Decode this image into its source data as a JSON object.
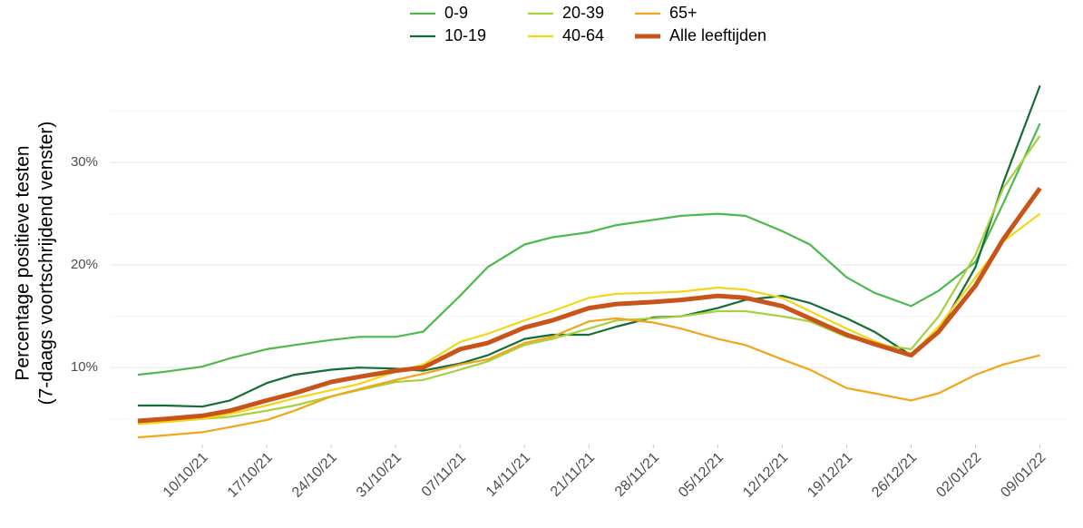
{
  "chart_data": {
    "type": "line",
    "ylabel": [
      "Percentage positieve testen",
      "(7-daags voortschrijdend venster)"
    ],
    "x": [
      "03/10/21",
      "06/10/21",
      "10/10/21",
      "13/10/21",
      "17/10/21",
      "20/10/21",
      "24/10/21",
      "27/10/21",
      "31/10/21",
      "03/11/21",
      "07/11/21",
      "10/11/21",
      "14/11/21",
      "17/11/21",
      "21/11/21",
      "24/11/21",
      "28/11/21",
      "01/12/21",
      "05/12/21",
      "08/12/21",
      "12/12/21",
      "15/12/21",
      "19/12/21",
      "22/12/21",
      "26/12/21",
      "29/12/21",
      "02/01/22",
      "05/01/22",
      "09/01/22"
    ],
    "series": [
      {
        "name": "0-9",
        "color": "#4cba4c",
        "values": [
          9.3,
          9.6,
          10.1,
          10.9,
          11.8,
          12.2,
          12.7,
          13.0,
          13.0,
          13.5,
          17.0,
          19.8,
          22.0,
          22.7,
          23.2,
          23.9,
          24.4,
          24.8,
          25.0,
          24.8,
          23.3,
          22.0,
          18.8,
          17.3,
          16.0,
          17.5,
          20.3,
          26.0,
          33.8
        ]
      },
      {
        "name": "10-19",
        "color": "#136d35",
        "values": [
          6.3,
          6.3,
          6.2,
          6.8,
          8.5,
          9.3,
          9.8,
          10.0,
          9.9,
          9.7,
          10.4,
          11.2,
          12.8,
          13.2,
          13.2,
          14.0,
          14.9,
          15.0,
          15.8,
          16.6,
          17.0,
          16.3,
          14.8,
          13.5,
          11.2,
          13.5,
          19.8,
          28.0,
          37.5
        ]
      },
      {
        "name": "20-39",
        "color": "#a6d13e",
        "values": [
          4.5,
          4.7,
          5.0,
          5.2,
          5.8,
          6.3,
          7.2,
          7.8,
          8.6,
          8.8,
          9.8,
          10.6,
          12.2,
          12.8,
          13.8,
          14.6,
          14.8,
          15.0,
          15.5,
          15.5,
          15.0,
          14.5,
          13.0,
          12.3,
          11.8,
          15.0,
          21.0,
          27.5,
          32.6
        ]
      },
      {
        "name": "40-64",
        "color": "#f5d617",
        "values": [
          4.5,
          4.7,
          5.0,
          5.5,
          6.3,
          7.0,
          7.8,
          8.4,
          9.6,
          10.3,
          12.5,
          13.3,
          14.6,
          15.5,
          16.8,
          17.2,
          17.3,
          17.4,
          17.8,
          17.6,
          16.8,
          15.5,
          13.8,
          12.6,
          11.2,
          14.0,
          18.8,
          22.3,
          25.0
        ]
      },
      {
        "name": "65+",
        "color": "#f2a51a",
        "values": [
          3.2,
          3.4,
          3.7,
          4.2,
          4.9,
          5.8,
          7.2,
          7.9,
          8.8,
          9.4,
          10.3,
          10.8,
          12.4,
          13.0,
          14.5,
          14.8,
          14.4,
          13.8,
          12.8,
          12.2,
          10.8,
          9.8,
          8.0,
          7.5,
          6.8,
          7.5,
          9.3,
          10.3,
          11.2
        ]
      },
      {
        "name": "Alle leeftijden",
        "color": "#c8541a",
        "width": 5,
        "values": [
          4.8,
          5.0,
          5.3,
          5.8,
          6.8,
          7.5,
          8.6,
          9.1,
          9.7,
          10.0,
          11.8,
          12.4,
          13.9,
          14.6,
          15.8,
          16.2,
          16.4,
          16.6,
          17.0,
          16.8,
          16.0,
          14.8,
          13.2,
          12.3,
          11.2,
          13.5,
          18.0,
          22.5,
          27.5
        ]
      }
    ],
    "xlim": [
      "30/09/21",
      "12/01/22"
    ],
    "xticks": [
      "10/10/21",
      "17/10/21",
      "24/10/21",
      "31/10/21",
      "07/11/21",
      "14/11/21",
      "21/11/21",
      "28/11/21",
      "05/12/21",
      "12/12/21",
      "19/12/21",
      "26/12/21",
      "02/01/22",
      "09/01/22"
    ],
    "ylim": [
      2.5,
      38.5
    ],
    "yticks": [
      {
        "value": 10,
        "label": "10%"
      },
      {
        "value": 20,
        "label": "20%"
      },
      {
        "value": 30,
        "label": "30%"
      }
    ],
    "minor_yticks": [
      5,
      15,
      25,
      35
    ],
    "grid": true,
    "legend": "top"
  }
}
